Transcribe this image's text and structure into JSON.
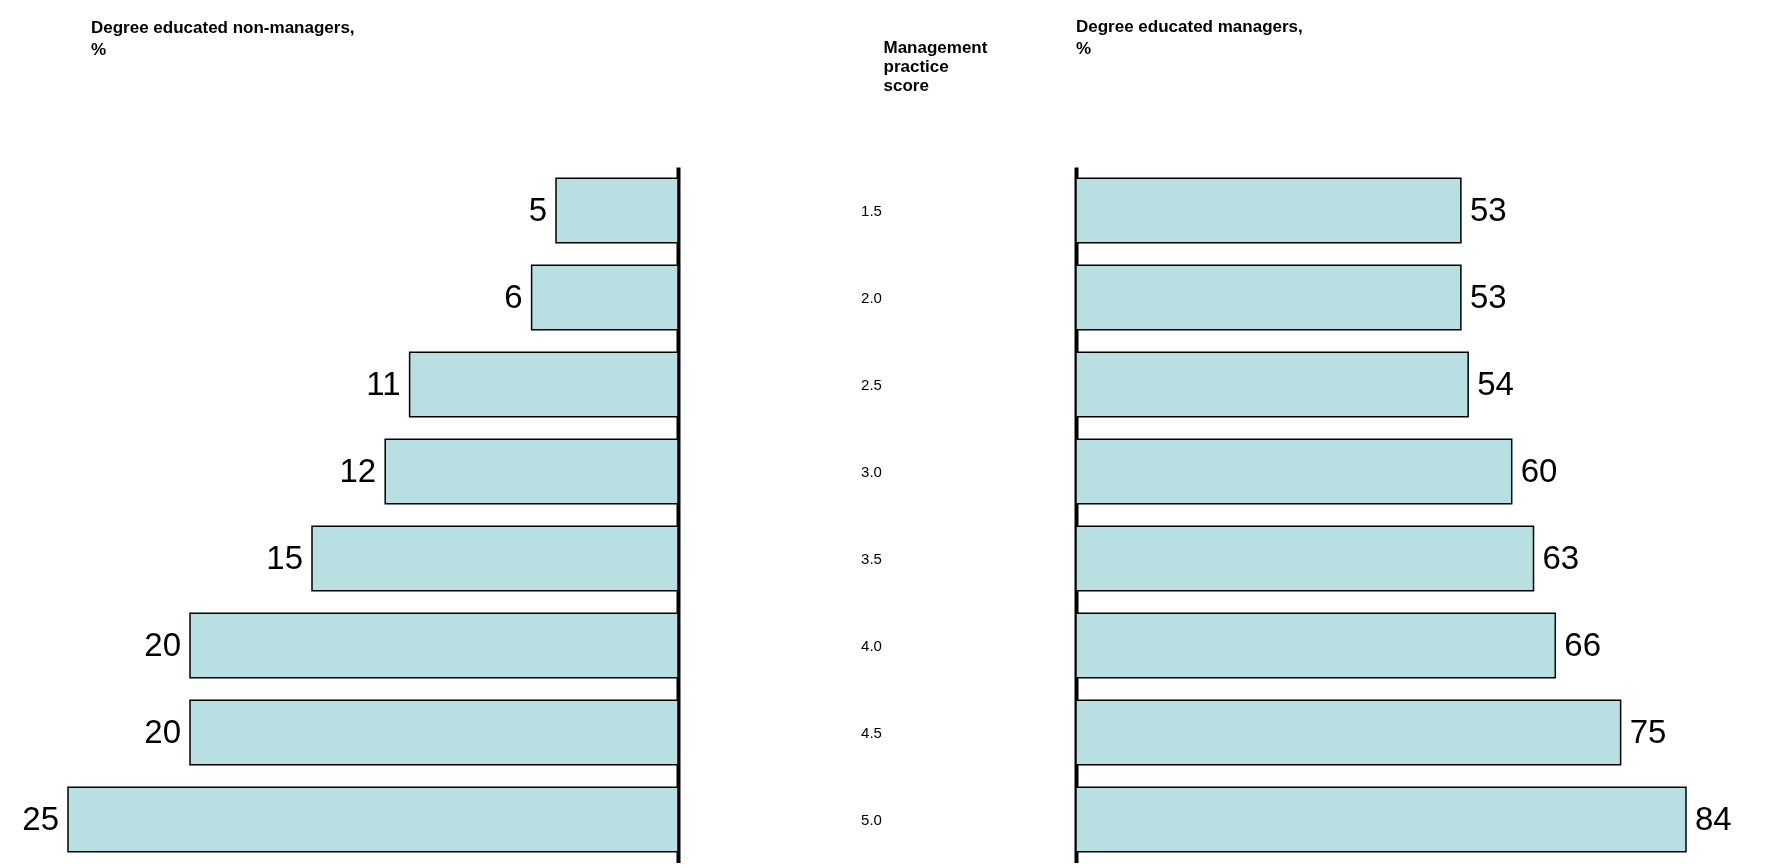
{
  "chart_data": [
    {
      "type": "bar",
      "orientation": "horizontal",
      "title": "Degree educated non-managers, %",
      "categories": [
        "1.5",
        "2.0",
        "2.5",
        "3.0",
        "3.5",
        "4.0",
        "4.5",
        "5.0"
      ],
      "values": [
        5,
        6,
        11,
        12,
        15,
        20,
        20,
        25
      ],
      "color": "#b8e0e2",
      "data_labels": true,
      "tick_labels": false
    },
    {
      "type": "bar",
      "orientation": "horizontal",
      "title": "Degree educated managers, %",
      "ylabel": "Management practice score",
      "categories": [
        "1.5",
        "2.0",
        "2.5",
        "3.0",
        "3.5",
        "4.0",
        "4.5",
        "5.0"
      ],
      "values": [
        53,
        53,
        54,
        60,
        63,
        66,
        75,
        84
      ],
      "color": "#b8e0e2",
      "data_labels": true,
      "tick_labels": "y"
    }
  ]
}
